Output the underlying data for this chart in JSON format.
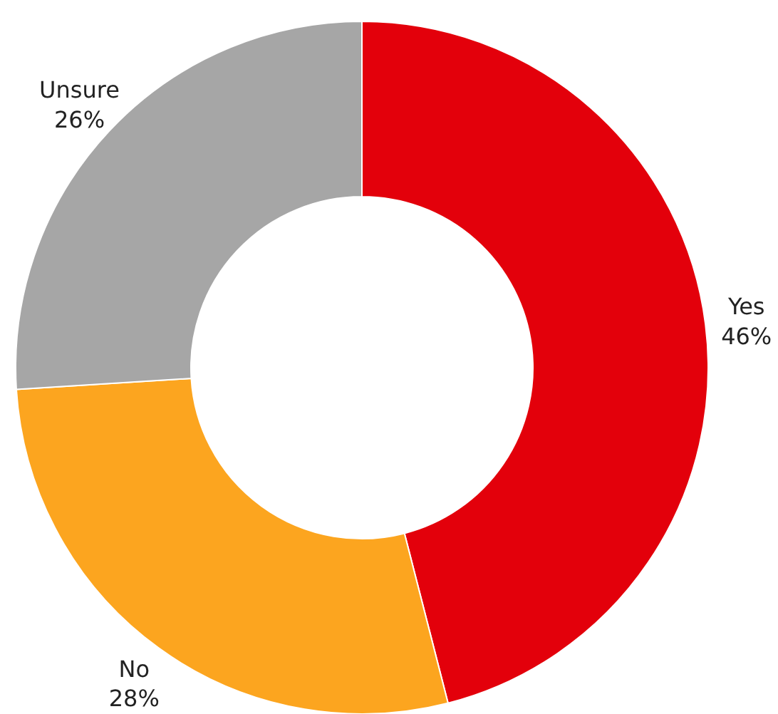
{
  "chart_data": {
    "type": "donut",
    "categories": [
      "Yes",
      "No",
      "Unsure"
    ],
    "values": [
      46,
      28,
      26
    ],
    "colors": [
      "#e3000b",
      "#fca51f",
      "#a6a6a6"
    ],
    "value_labels": [
      "46%",
      "28%",
      "26%"
    ]
  }
}
